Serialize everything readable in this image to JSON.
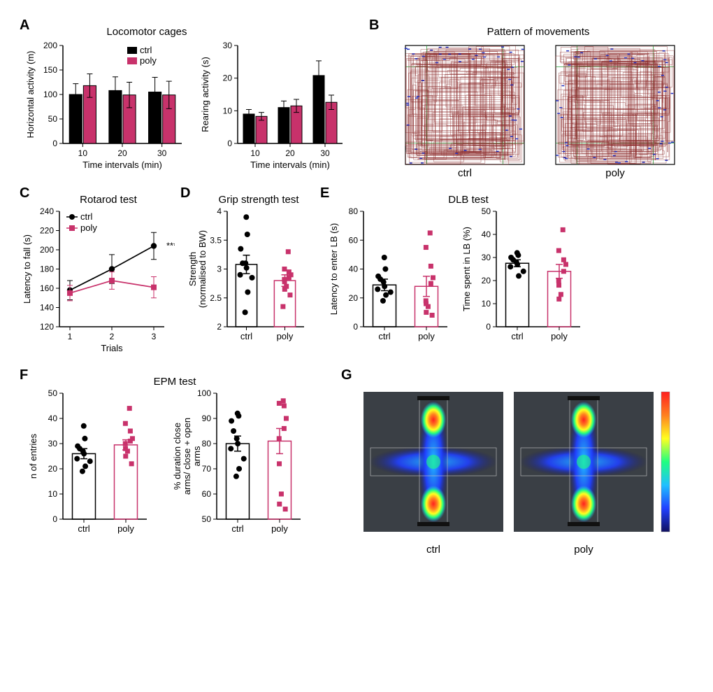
{
  "colors": {
    "ctrl": "#000000",
    "poly": "#c8326b",
    "ctrl_fill": "#000000",
    "poly_fill": "#c8326b",
    "bar_stroke": "#000000",
    "axis": "#000000",
    "background": "#ffffff",
    "movement_trace": "#8b2a2a",
    "movement_rearing": "#2030c0",
    "movement_grid": "#2aa03a",
    "heatmap_bg": "#3a3f45",
    "heatmap_low": "#101060",
    "heatmap_mid1": "#2040ff",
    "heatmap_mid2": "#20c0ff",
    "heatmap_mid3": "#20ff80",
    "heatmap_mid4": "#ffff20",
    "heatmap_mid5": "#ff8020",
    "heatmap_high": "#ff2020"
  },
  "panelA": {
    "label": "A",
    "title": "Locomotor cages",
    "legend": {
      "ctrl": "ctrl",
      "poly": "poly"
    },
    "horizontal": {
      "ylabel": "Horizontal activity (m)",
      "xlabel": "Time intervals (min)",
      "categories": [
        "10",
        "20",
        "30"
      ],
      "ylim": [
        0,
        200
      ],
      "yticks": [
        0,
        50,
        100,
        150,
        200
      ],
      "bars": {
        "ctrl": {
          "vals": [
            100,
            108,
            105
          ],
          "err": [
            22,
            28,
            30
          ]
        },
        "poly": {
          "vals": [
            118,
            99,
            99
          ],
          "err": [
            24,
            26,
            28
          ]
        }
      }
    },
    "rearing": {
      "ylabel": "Rearing activity (s)",
      "xlabel": "Time intervals (min)",
      "categories": [
        "10",
        "20",
        "30"
      ],
      "ylim": [
        0,
        30
      ],
      "yticks": [
        0,
        10,
        20,
        30
      ],
      "bars": {
        "ctrl": {
          "vals": [
            9.0,
            11.0,
            20.8
          ],
          "err": [
            1.4,
            2.0,
            4.5
          ]
        },
        "poly": {
          "vals": [
            8.3,
            11.5,
            12.6
          ],
          "err": [
            1.2,
            2.0,
            2.2
          ]
        }
      }
    }
  },
  "panelB": {
    "label": "B",
    "title": "Pattern of movements",
    "xlabels": [
      "ctrl",
      "poly"
    ]
  },
  "panelC": {
    "label": "C",
    "title": "Rotarod test",
    "ylabel": "Latency to fall (s)",
    "xlabel": "Trials",
    "xticks": [
      "1",
      "2",
      "3"
    ],
    "ylim": [
      120,
      240
    ],
    "yticks": [
      120,
      140,
      160,
      180,
      200,
      220,
      240
    ],
    "series": {
      "ctrl": {
        "vals": [
          158,
          180,
          204
        ],
        "err": [
          10,
          15,
          14
        ],
        "marker": "circle"
      },
      "poly": {
        "vals": [
          155,
          168,
          161
        ],
        "err": [
          8,
          9,
          11
        ],
        "marker": "square"
      }
    },
    "legend": {
      "ctrl": "ctrl",
      "poly": "poly"
    },
    "sig": "***"
  },
  "panelD": {
    "label": "D",
    "title": "Grip strength test",
    "ylabel": "Strength\n(normalised to BW)",
    "xticks": [
      "ctrl",
      "poly"
    ],
    "ylim": [
      2,
      4
    ],
    "yticks": [
      2,
      2.5,
      3,
      3.5,
      4
    ],
    "groups": {
      "ctrl": {
        "mean": 3.08,
        "err": 0.16,
        "points": [
          3.9,
          3.6,
          3.35,
          3.1,
          3.1,
          3.02,
          2.9,
          2.85,
          2.6,
          2.25
        ]
      },
      "poly": {
        "mean": 2.8,
        "err": 0.1,
        "points": [
          3.3,
          3.0,
          2.95,
          2.9,
          2.85,
          2.82,
          2.78,
          2.7,
          2.65,
          2.55,
          2.35
        ]
      }
    }
  },
  "panelE": {
    "label": "E",
    "title": "DLB test",
    "latency": {
      "ylabel": "Latency to enter LB (s)",
      "xticks": [
        "ctrl",
        "poly"
      ],
      "ylim": [
        0,
        80
      ],
      "yticks": [
        0,
        20,
        40,
        60,
        80
      ],
      "groups": {
        "ctrl": {
          "mean": 29,
          "err": 4,
          "points": [
            48,
            40,
            35,
            33,
            31,
            28,
            26,
            24,
            22,
            18
          ]
        },
        "poly": {
          "mean": 28,
          "err": 7,
          "points": [
            65,
            55,
            42,
            34,
            30,
            18,
            16,
            14,
            10,
            8
          ]
        }
      }
    },
    "timespent": {
      "ylabel": "Time spent in LB (%)",
      "xticks": [
        "ctrl",
        "poly"
      ],
      "ylim": [
        0,
        50
      ],
      "yticks": [
        0,
        10,
        20,
        30,
        40,
        50
      ],
      "groups": {
        "ctrl": {
          "mean": 27.5,
          "err": 1.5,
          "points": [
            32,
            31,
            30,
            29,
            28,
            27,
            26,
            24,
            22
          ]
        },
        "poly": {
          "mean": 24,
          "err": 3,
          "points": [
            42,
            33,
            29,
            27,
            24,
            20,
            18,
            14,
            12
          ]
        }
      }
    }
  },
  "panelF": {
    "label": "F",
    "title": "EPM test",
    "entries": {
      "ylabel": "n of entries",
      "xticks": [
        "ctrl",
        "poly"
      ],
      "ylim": [
        0,
        50
      ],
      "yticks": [
        0,
        10,
        20,
        30,
        40,
        50
      ],
      "groups": {
        "ctrl": {
          "mean": 26,
          "err": 2,
          "points": [
            37,
            32,
            29,
            28,
            27,
            26,
            24,
            23,
            21,
            19
          ]
        },
        "poly": {
          "mean": 29.5,
          "err": 2,
          "points": [
            44,
            38,
            35,
            32,
            31,
            30,
            28,
            27,
            25,
            22
          ]
        }
      }
    },
    "duration": {
      "ylabel": "% duration close\narms/ close + open\narms",
      "xticks": [
        "ctrl",
        "poly"
      ],
      "ylim": [
        50,
        100
      ],
      "yticks": [
        50,
        60,
        70,
        80,
        90,
        100
      ],
      "groups": {
        "ctrl": {
          "mean": 80,
          "err": 3,
          "points": [
            92,
            91,
            89,
            85,
            82,
            80,
            78,
            74,
            70,
            67
          ]
        },
        "poly": {
          "mean": 81,
          "err": 5,
          "points": [
            97,
            96,
            95,
            90,
            86,
            82,
            72,
            60,
            56,
            54
          ]
        }
      }
    }
  },
  "panelG": {
    "label": "G",
    "xlabels": [
      "ctrl",
      "poly"
    ]
  },
  "layout": {
    "bar_width": 0.35,
    "group_gap": 0.12,
    "marker_size": 4.5,
    "line_width": 1.5,
    "err_cap": 4
  }
}
